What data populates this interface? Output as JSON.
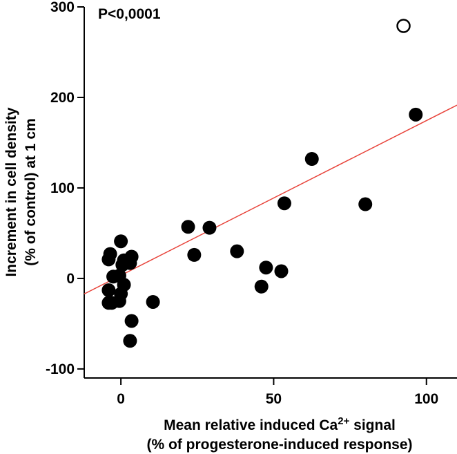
{
  "chart_data": {
    "type": "scatter",
    "annotation": "P<0,0001",
    "xlabel": {
      "line1_prefix": "Mean relative induced Ca",
      "line1_sup": "2+",
      "line1_suffix": " signal",
      "line2": "(% of progesterone-induced response)"
    },
    "ylabel": {
      "line1": "Increment in cell density",
      "line2": "(% of control) at 1 cm"
    },
    "xlim": [
      -12,
      110
    ],
    "ylim": [
      -110,
      300
    ],
    "xticks": [
      0,
      50,
      100
    ],
    "yticks": [
      300,
      200,
      100,
      0,
      -100
    ],
    "xtick_labels": [
      "0",
      "50",
      "100"
    ],
    "ytick_labels": [
      "300",
      "200",
      "100",
      "0",
      "-100"
    ],
    "series": [
      {
        "name": "filled",
        "marker": "filled-circle",
        "color": "#000000",
        "points": [
          [
            -3.5,
            27
          ],
          [
            -4,
            21
          ],
          [
            0,
            41
          ],
          [
            1,
            20
          ],
          [
            0.5,
            15
          ],
          [
            3,
            17
          ],
          [
            3.5,
            24
          ],
          [
            -2.5,
            2
          ],
          [
            -0.5,
            3
          ],
          [
            1,
            -7
          ],
          [
            -4,
            -13
          ],
          [
            0,
            -17
          ],
          [
            -4,
            -27
          ],
          [
            -3,
            -27
          ],
          [
            -0.5,
            -25
          ],
          [
            10.5,
            -26
          ],
          [
            3.5,
            -47
          ],
          [
            3,
            -69
          ],
          [
            22,
            57
          ],
          [
            24,
            26
          ],
          [
            29,
            56
          ],
          [
            38,
            30
          ],
          [
            46,
            -9
          ],
          [
            47.5,
            12
          ],
          [
            52.5,
            8
          ],
          [
            53.5,
            83
          ],
          [
            62.5,
            132
          ],
          [
            80,
            82
          ],
          [
            96.5,
            181
          ]
        ]
      },
      {
        "name": "outlier",
        "marker": "open-circle",
        "color": "#000000",
        "points": [
          [
            92.5,
            279
          ]
        ]
      }
    ],
    "regression": {
      "color": "#e8433a",
      "slope": 1.71,
      "intercept": 3.4,
      "x_range": [
        -12,
        110
      ]
    }
  }
}
